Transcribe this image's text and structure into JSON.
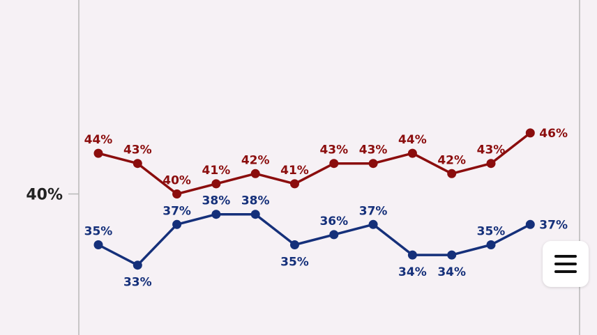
{
  "chart_data": {
    "type": "line",
    "y_tick_labels": [
      {
        "value": 40,
        "label": "40%"
      }
    ],
    "ylim": [
      29,
      52
    ],
    "grid": false,
    "series": [
      {
        "color": "#8b0d0d",
        "values": [
          44,
          43,
          40,
          41,
          42,
          41,
          43,
          43,
          44,
          42,
          43,
          46
        ],
        "labels": [
          "44%",
          "43%",
          "40%",
          "41%",
          "42%",
          "41%",
          "43%",
          "43%",
          "44%",
          "42%",
          "43%",
          "46%"
        ]
      },
      {
        "color": "#15307a",
        "values": [
          35,
          33,
          37,
          38,
          38,
          35,
          36,
          37,
          34,
          34,
          35,
          37
        ],
        "labels": [
          "35%",
          "33%",
          "37%",
          "38%",
          "38%",
          "35%",
          "36%",
          "37%",
          "34%",
          "34%",
          "35%",
          "37%"
        ]
      }
    ]
  },
  "menu": {
    "icon": "hamburger-menu-icon"
  }
}
